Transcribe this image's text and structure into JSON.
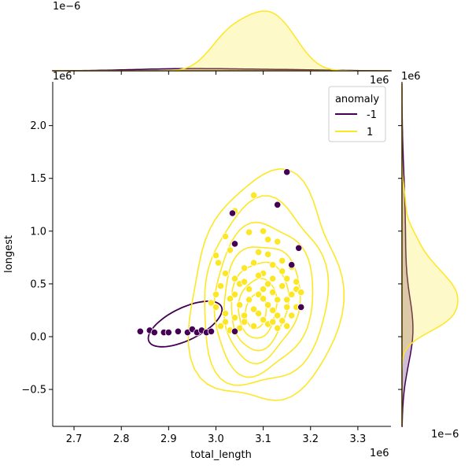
{
  "chart_data": {
    "type": "scatter",
    "xlabel": "total_length",
    "ylabel": "longest",
    "x_offset_label": "1e6",
    "y_offset_label": "1e6",
    "xlim": [
      2.655,
      3.37
    ],
    "ylim": [
      -0.85,
      2.4
    ],
    "x_ticks": [
      2.7,
      2.8,
      2.9,
      3.0,
      3.1,
      3.2,
      3.3
    ],
    "y_ticks": [
      -0.5,
      0.0,
      0.5,
      1.0,
      1.5,
      2.0
    ],
    "x_tick_labels": [
      "2.7",
      "2.8",
      "2.9",
      "3.0",
      "3.1",
      "3.2",
      "3.3"
    ],
    "y_tick_labels": [
      "−0.5",
      "0.0",
      "0.5",
      "1.0",
      "1.5",
      "2.0"
    ],
    "legend": {
      "title": "anomaly",
      "placement": "top-right"
    },
    "top_marginal": {
      "offset_label": "1e−6",
      "type": "kde"
    },
    "right_marginal": {
      "offset_label": "1e−6",
      "type": "kde"
    },
    "series": [
      {
        "name": "-1",
        "color": "#440154",
        "points": [
          [
            2.84,
            0.05
          ],
          [
            2.86,
            0.06
          ],
          [
            2.87,
            0.04
          ],
          [
            2.89,
            0.04
          ],
          [
            2.9,
            0.04
          ],
          [
            2.92,
            0.05
          ],
          [
            2.94,
            0.04
          ],
          [
            2.95,
            0.07
          ],
          [
            2.96,
            0.04
          ],
          [
            2.97,
            0.06
          ],
          [
            2.98,
            0.04
          ],
          [
            2.99,
            0.05
          ],
          [
            3.035,
            1.17
          ],
          [
            3.04,
            0.88
          ],
          [
            3.04,
            0.05
          ],
          [
            3.13,
            1.25
          ],
          [
            3.15,
            1.56
          ],
          [
            3.16,
            0.68
          ],
          [
            3.175,
            0.84
          ],
          [
            3.18,
            0.28
          ]
        ]
      },
      {
        "name": "1",
        "color": "#fde725",
        "points": [
          [
            3.02,
            0.95
          ],
          [
            3.04,
            1.19
          ],
          [
            3.08,
            1.34
          ],
          [
            3.07,
            0.99
          ],
          [
            3.03,
            0.82
          ],
          [
            3.0,
            0.77
          ],
          [
            3.005,
            0.7
          ],
          [
            3.02,
            0.6
          ],
          [
            3.04,
            0.55
          ],
          [
            3.05,
            0.5
          ],
          [
            3.01,
            0.48
          ],
          [
            3.0,
            0.4
          ],
          [
            2.99,
            0.32
          ],
          [
            3.0,
            0.28
          ],
          [
            3.02,
            0.22
          ],
          [
            3.04,
            0.18
          ],
          [
            3.06,
            0.14
          ],
          [
            3.08,
            0.1
          ],
          [
            3.05,
            0.08
          ],
          [
            3.03,
            0.06
          ],
          [
            3.07,
            0.35
          ],
          [
            3.09,
            0.4
          ],
          [
            3.1,
            0.45
          ],
          [
            3.11,
            0.3
          ],
          [
            3.12,
            0.25
          ],
          [
            3.13,
            0.2
          ],
          [
            3.14,
            0.15
          ],
          [
            3.15,
            0.35
          ],
          [
            3.16,
            0.4
          ],
          [
            3.17,
            0.45
          ],
          [
            3.18,
            0.42
          ],
          [
            3.1,
            0.6
          ],
          [
            3.12,
            0.68
          ],
          [
            3.14,
            0.72
          ],
          [
            3.11,
            0.78
          ],
          [
            3.09,
            0.8
          ],
          [
            3.13,
            0.9
          ],
          [
            3.1,
            1.0
          ],
          [
            3.12,
            0.55
          ],
          [
            3.15,
            0.55
          ],
          [
            3.06,
            0.65
          ],
          [
            3.08,
            0.7
          ],
          [
            3.09,
            0.22
          ],
          [
            3.11,
            0.12
          ],
          [
            3.13,
            0.08
          ],
          [
            3.15,
            0.1
          ],
          [
            3.16,
            0.2
          ],
          [
            3.17,
            0.28
          ],
          [
            3.07,
            0.45
          ],
          [
            3.05,
            0.3
          ],
          [
            3.1,
            0.36
          ],
          [
            3.12,
            0.42
          ],
          [
            3.14,
            0.48
          ],
          [
            3.11,
            0.5
          ],
          [
            3.13,
            0.35
          ],
          [
            3.08,
            0.26
          ],
          [
            3.06,
            0.2
          ],
          [
            3.14,
            0.62
          ],
          [
            3.16,
            0.66
          ],
          [
            3.04,
            0.4
          ],
          [
            3.03,
            0.36
          ],
          [
            3.1,
            0.16
          ],
          [
            3.12,
            0.14
          ],
          [
            3.09,
            0.58
          ],
          [
            3.15,
            0.28
          ],
          [
            3.17,
            0.52
          ],
          [
            3.02,
            0.14
          ],
          [
            3.01,
            0.1
          ],
          [
            3.06,
            0.52
          ],
          [
            3.11,
            0.92
          ]
        ]
      }
    ]
  }
}
